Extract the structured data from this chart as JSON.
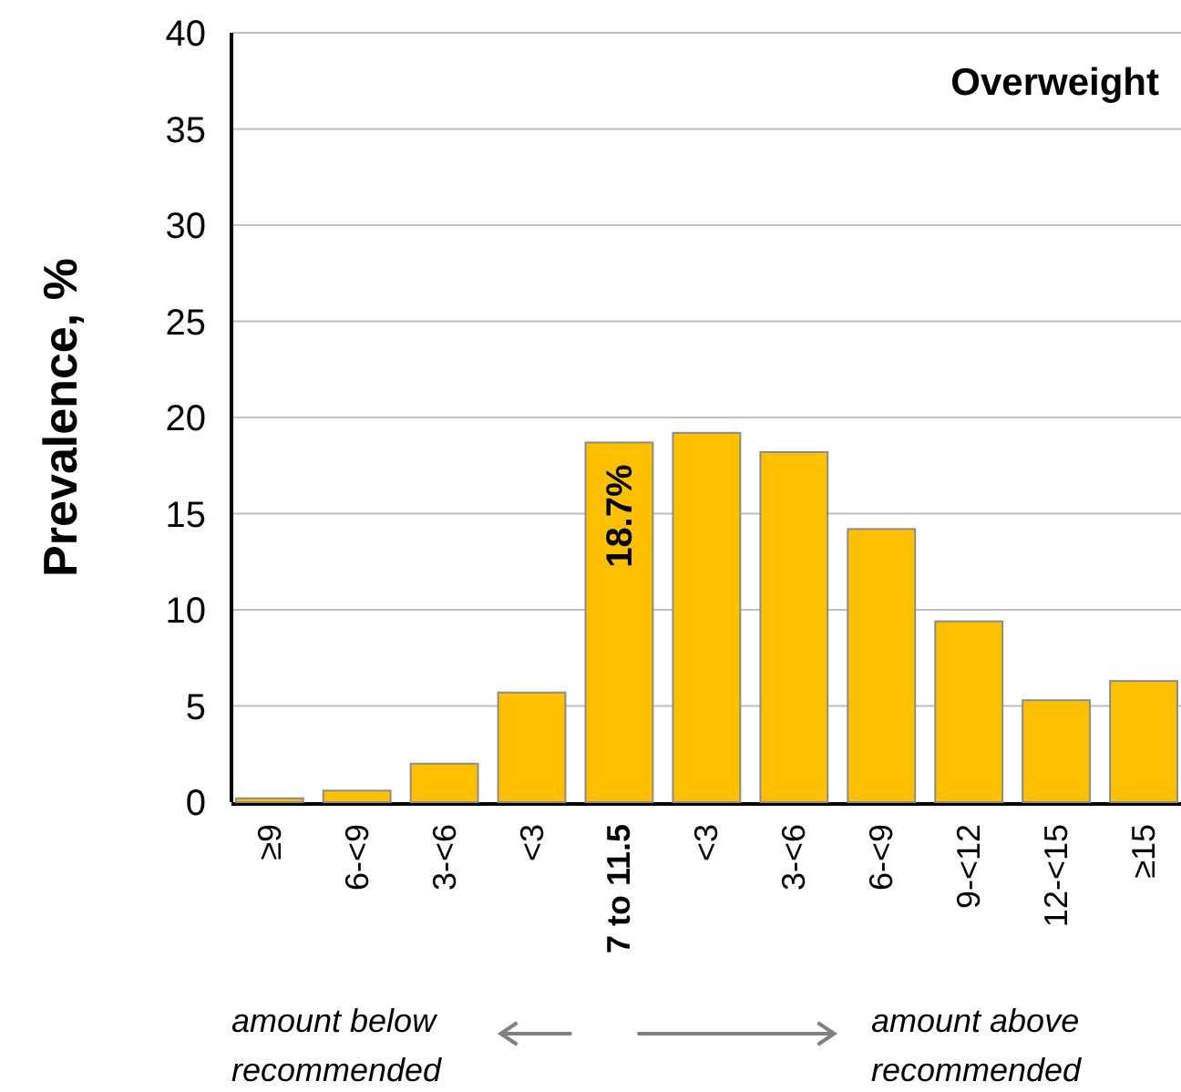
{
  "chart_data": {
    "type": "bar",
    "title": "Overweight",
    "ylabel": "Prevalence, %",
    "categories": [
      "≥9",
      "6-<9",
      "3-<6",
      "<3",
      "7 to 11.5",
      "<3",
      "3-<6",
      "6-<9",
      "9-<12",
      "12-<15",
      "≥15"
    ],
    "values": [
      0.2,
      0.6,
      2.0,
      5.7,
      18.7,
      19.2,
      18.2,
      14.2,
      9.4,
      5.3,
      6.3
    ],
    "value_labels": [
      null,
      null,
      null,
      null,
      "18.7%",
      null,
      null,
      null,
      null,
      null,
      null
    ],
    "color": "#ffc000",
    "ylim": [
      0,
      40
    ],
    "yticks": [
      0,
      5,
      10,
      15,
      20,
      25,
      30,
      35,
      40
    ],
    "grid": "y",
    "annotations": [
      "amount below recommended",
      "amount above recommended"
    ]
  }
}
